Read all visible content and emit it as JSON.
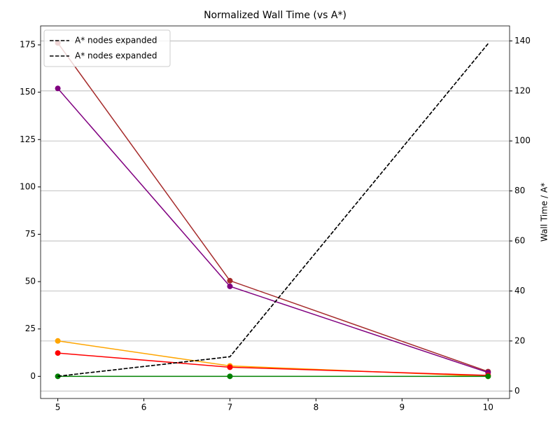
{
  "chart_data": {
    "type": "line",
    "title": "Normalized Wall Time (vs A*)",
    "y2label": "Wall Time / A*",
    "x": [
      5,
      7,
      10
    ],
    "xlim": [
      4.8,
      10.25
    ],
    "xticks": [
      5,
      6,
      7,
      8,
      9,
      10
    ],
    "ylim": [
      -11.7,
      185
    ],
    "yticks": [
      0,
      25,
      50,
      75,
      100,
      125,
      150,
      175
    ],
    "y2lim": [
      -3,
      146
    ],
    "y2ticks": [
      0,
      20,
      40,
      60,
      80,
      100,
      120,
      140
    ],
    "grid": "y2",
    "legend": "upper left",
    "series": [
      {
        "color": "#a52a2a",
        "values": [
          176,
          50.5,
          2.5
        ],
        "markers": true
      },
      {
        "color": "#800080",
        "values": [
          152,
          47.5,
          2
        ],
        "markers": true
      },
      {
        "color": "#ffa500",
        "values": [
          18.7,
          5.5,
          0
        ],
        "markers": true
      },
      {
        "color": "#ff0000",
        "values": [
          12.3,
          4.8,
          0.5
        ],
        "markers": true
      },
      {
        "color": "#008000",
        "values": [
          0,
          0,
          0
        ],
        "markers": true
      },
      {
        "name": "A* nodes expanded",
        "color": "#000000",
        "values": [
          5.9,
          13.7,
          138.9
        ],
        "axis": "y2",
        "dashed": true
      },
      {
        "name": "A* nodes expanded",
        "color": "#000000",
        "values": [
          5.9,
          13.7,
          138.9
        ],
        "axis": "y2",
        "dashed": true
      }
    ]
  }
}
